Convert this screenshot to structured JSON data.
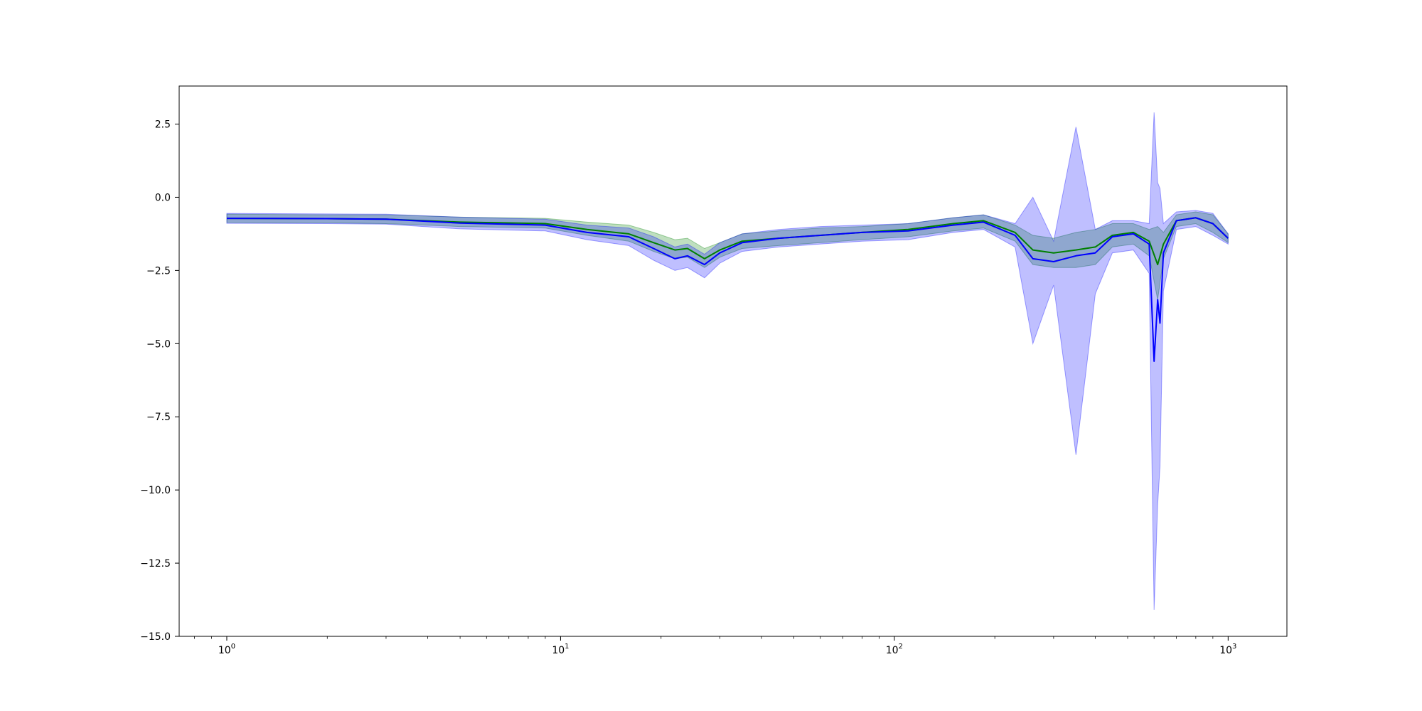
{
  "chart_data": {
    "type": "line",
    "title": "",
    "xlabel": "",
    "ylabel": "",
    "x_scale": "log",
    "xlim": [
      0.72,
      1500
    ],
    "ylim": [
      -15.0,
      3.8
    ],
    "grid": false,
    "legend": "none",
    "x_ticks": [
      {
        "value": 1,
        "base": "10",
        "exp": "0"
      },
      {
        "value": 10,
        "base": "10",
        "exp": "1"
      },
      {
        "value": 100,
        "base": "10",
        "exp": "2"
      },
      {
        "value": 1000,
        "base": "10",
        "exp": "3"
      }
    ],
    "y_ticks": [
      {
        "value": 2.5,
        "label": "2.5"
      },
      {
        "value": 0.0,
        "label": "0.0"
      },
      {
        "value": -2.5,
        "label": "−2.5"
      },
      {
        "value": -5.0,
        "label": "−5.0"
      },
      {
        "value": -7.5,
        "label": "−7.5"
      },
      {
        "value": -10.0,
        "label": "−10.0"
      },
      {
        "value": -12.5,
        "label": "−12.5"
      },
      {
        "value": -15.0,
        "label": "−15.0"
      }
    ],
    "series": [
      {
        "color": "#008000",
        "band_color": "#008000",
        "x": [
          1,
          2,
          3,
          5,
          9,
          12,
          16,
          19,
          22,
          24,
          27,
          30,
          35,
          45,
          60,
          80,
          110,
          150,
          185,
          230,
          260,
          300,
          350,
          400,
          450,
          520,
          580,
          615,
          640,
          700,
          800,
          900,
          1000
        ],
        "y": [
          -0.72,
          -0.73,
          -0.75,
          -0.85,
          -0.9,
          -1.1,
          -1.25,
          -1.55,
          -1.8,
          -1.75,
          -2.1,
          -1.8,
          -1.5,
          -1.4,
          -1.3,
          -1.2,
          -1.1,
          -0.9,
          -0.8,
          -1.2,
          -1.8,
          -1.9,
          -1.8,
          -1.7,
          -1.3,
          -1.2,
          -1.5,
          -2.3,
          -1.6,
          -0.8,
          -0.7,
          -0.9,
          -1.4
        ],
        "upper": [
          -0.58,
          -0.6,
          -0.6,
          -0.68,
          -0.72,
          -0.85,
          -0.95,
          -1.2,
          -1.45,
          -1.4,
          -1.75,
          -1.55,
          -1.25,
          -1.15,
          -1.05,
          -1.0,
          -0.9,
          -0.7,
          -0.6,
          -0.95,
          -1.3,
          -1.4,
          -1.2,
          -1.1,
          -0.9,
          -0.9,
          -1.1,
          -1.0,
          -1.2,
          -0.6,
          -0.5,
          -0.6,
          -1.25
        ],
        "lower": [
          -0.86,
          -0.87,
          -0.9,
          -1.0,
          -1.05,
          -1.3,
          -1.5,
          -1.85,
          -2.1,
          -2.05,
          -2.4,
          -2.05,
          -1.75,
          -1.65,
          -1.55,
          -1.45,
          -1.35,
          -1.15,
          -1.05,
          -1.5,
          -2.3,
          -2.4,
          -2.4,
          -2.3,
          -1.7,
          -1.6,
          -2.0,
          -3.5,
          -2.1,
          -1.0,
          -0.9,
          -1.2,
          -1.55
        ]
      },
      {
        "color": "#0000ff",
        "band_color": "#0000ff",
        "x": [
          1,
          2,
          3,
          5,
          9,
          12,
          16,
          19,
          22,
          24,
          27,
          30,
          35,
          45,
          60,
          80,
          110,
          150,
          185,
          230,
          260,
          300,
          350,
          400,
          450,
          520,
          580,
          600,
          615,
          625,
          640,
          700,
          800,
          900,
          1000
        ],
        "y": [
          -0.72,
          -0.73,
          -0.75,
          -0.88,
          -0.95,
          -1.2,
          -1.35,
          -1.75,
          -2.1,
          -2.0,
          -2.3,
          -1.9,
          -1.55,
          -1.4,
          -1.3,
          -1.2,
          -1.15,
          -0.95,
          -0.85,
          -1.3,
          -2.1,
          -2.2,
          -2.0,
          -1.9,
          -1.35,
          -1.25,
          -1.6,
          -5.6,
          -3.5,
          -4.3,
          -1.9,
          -0.8,
          -0.7,
          -0.9,
          -1.4
        ],
        "upper": [
          -0.55,
          -0.57,
          -0.58,
          -0.68,
          -0.75,
          -0.95,
          -1.05,
          -1.35,
          -1.7,
          -1.6,
          -1.95,
          -1.55,
          -1.25,
          -1.1,
          -1.0,
          -0.95,
          -0.9,
          -0.7,
          -0.6,
          -0.9,
          0.0,
          -1.5,
          2.4,
          -1.1,
          -0.8,
          -0.8,
          -0.9,
          2.9,
          0.5,
          0.3,
          -0.9,
          -0.5,
          -0.45,
          -0.55,
          -1.25
        ],
        "lower": [
          -0.89,
          -0.9,
          -0.92,
          -1.08,
          -1.15,
          -1.45,
          -1.65,
          -2.15,
          -2.5,
          -2.4,
          -2.75,
          -2.25,
          -1.85,
          -1.7,
          -1.6,
          -1.5,
          -1.45,
          -1.2,
          -1.1,
          -1.7,
          -5.0,
          -3.0,
          -8.8,
          -3.3,
          -1.9,
          -1.8,
          -2.6,
          -14.1,
          -10.5,
          -9.2,
          -3.2,
          -1.1,
          -1.0,
          -1.3,
          -1.6
        ]
      }
    ]
  }
}
